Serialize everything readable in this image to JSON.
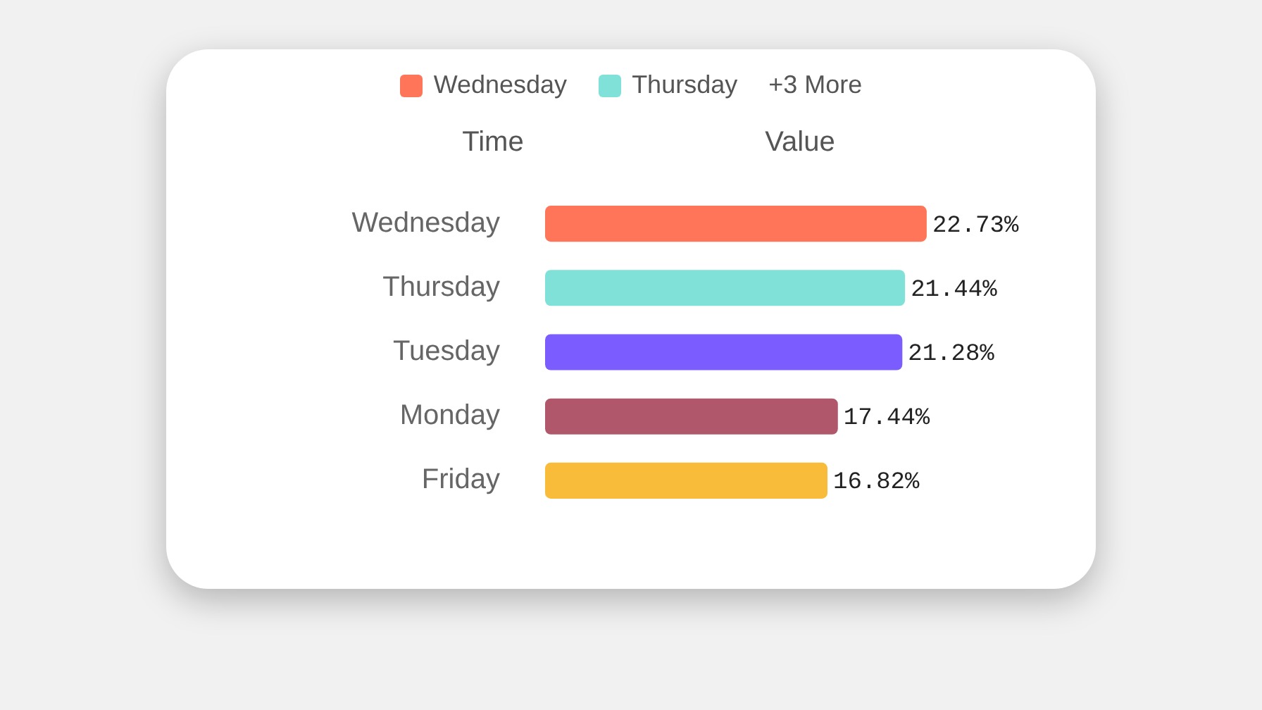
{
  "chart_data": {
    "type": "bar",
    "orientation": "horizontal",
    "xlabel": "Value",
    "ylabel": "Time",
    "categories": [
      "Wednesday",
      "Thursday",
      "Tuesday",
      "Monday",
      "Friday"
    ],
    "values": [
      22.73,
      21.44,
      21.28,
      17.44,
      16.82
    ],
    "colors": [
      "#ff7559",
      "#80e1d9",
      "#7b5cff",
      "#b1576b",
      "#f8bb3a"
    ],
    "value_labels": [
      "22.73%",
      "21.44%",
      "21.28%",
      "17.44%",
      "16.82%"
    ],
    "annotations": [
      "+3 More"
    ]
  }
}
